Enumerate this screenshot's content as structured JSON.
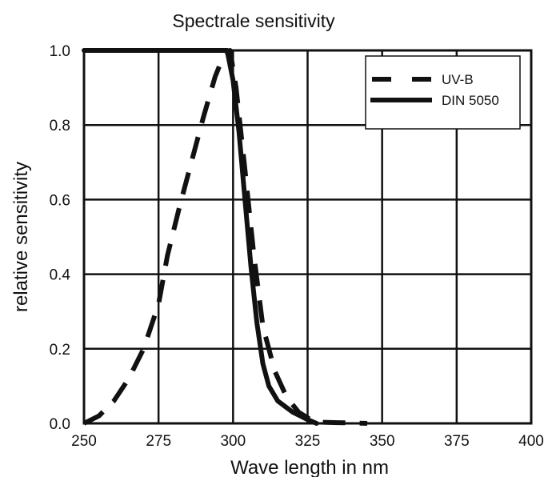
{
  "chart_data": {
    "type": "line",
    "title": "Spectrale sensitivity",
    "xlabel": "Wave length in nm",
    "ylabel": "relative sensitivity",
    "xlim": [
      250,
      400
    ],
    "ylim": [
      0.0,
      1.0
    ],
    "x_ticks": [
      250,
      275,
      300,
      325,
      350,
      375,
      400
    ],
    "x_tick_labels": [
      "250",
      "275",
      "300",
      "325",
      "350",
      "375",
      "400"
    ],
    "y_ticks": [
      0.0,
      0.2,
      0.4,
      0.6,
      0.8,
      1.0
    ],
    "y_tick_labels": [
      "0.0",
      "0.2",
      "0.4",
      "0.6",
      "0.8",
      "1.0"
    ],
    "grid": true,
    "legend_position": "top-right",
    "series": [
      {
        "name": "UV-B",
        "style": "dashed",
        "color": "#111111",
        "x": [
          250,
          255,
          260,
          265,
          270,
          275,
          278,
          282,
          286,
          290,
          294,
          297,
          299,
          301,
          304,
          307,
          310,
          314,
          318,
          322,
          327,
          330,
          335,
          340,
          345
        ],
        "y": [
          0.0,
          0.02,
          0.06,
          0.12,
          0.2,
          0.32,
          0.45,
          0.58,
          0.7,
          0.82,
          0.93,
          0.99,
          1.0,
          0.9,
          0.68,
          0.45,
          0.26,
          0.14,
          0.07,
          0.03,
          0.005,
          0.003,
          0.002,
          0.001,
          0.0
        ]
      },
      {
        "name": "DIN 5050",
        "style": "solid",
        "color": "#111111",
        "x": [
          250,
          260,
          270,
          280,
          290,
          298,
          300,
          302,
          304,
          306,
          308,
          310,
          312,
          315,
          320,
          325,
          328
        ],
        "y": [
          1.0,
          1.0,
          1.0,
          1.0,
          1.0,
          1.0,
          0.92,
          0.78,
          0.6,
          0.42,
          0.27,
          0.16,
          0.1,
          0.06,
          0.03,
          0.01,
          0.0
        ]
      }
    ]
  }
}
